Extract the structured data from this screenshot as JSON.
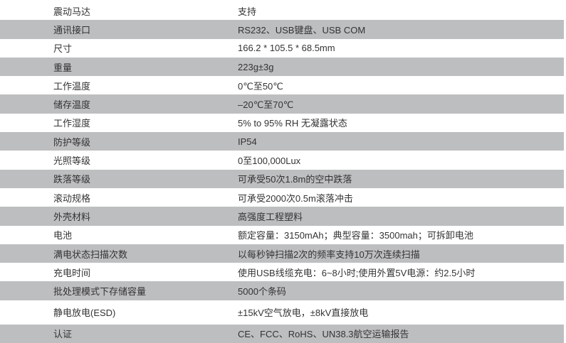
{
  "colors": {
    "stripe": "#bdbec0",
    "text": "#333333"
  },
  "rows": [
    {
      "label": "震动马达",
      "value": "支持"
    },
    {
      "label": "通讯接口",
      "value": "RS232、USB键盘、USB COM"
    },
    {
      "label": "尺寸",
      "value": "166.2 * 105.5 * 68.5mm"
    },
    {
      "label": "重量",
      "value": "223g±3g"
    },
    {
      "label": "工作温度",
      "value": "0℃至50℃"
    },
    {
      "label": "储存温度",
      "value": "–20℃至70℃"
    },
    {
      "label": "工作湿度",
      "value": "5% to 95% RH 无凝露状态"
    },
    {
      "label": "防护等级",
      "value": "IP54"
    },
    {
      "label": "光照等级",
      "value": "0至100,000Lux"
    },
    {
      "label": "跌落等级",
      "value": "可承受50次1.8m的空中跌落"
    },
    {
      "label": "滚动规格",
      "value": "可承受2000次0.5m滚落冲击"
    },
    {
      "label": "外壳材料",
      "value": "高强度工程塑料"
    },
    {
      "label": "电池",
      "value": "额定容量：3150mAh；典型容量：3500mah；可拆卸电池"
    },
    {
      "label": "满电状态扫描次数",
      "value": "以每秒钟扫描2次的频率支持10万次连续扫描"
    },
    {
      "label": "充电时间",
      "value": "使用USB线缆充电：6~8小时;使用外置5V电源：约2.5小时"
    },
    {
      "label": "批处理模式下存储容量",
      "value": "5000个条码"
    },
    {
      "label": "静电放电(ESD)",
      "value": "±15kV空气放电，±8kV直接放电"
    },
    {
      "label": "认证",
      "value": "CE、FCC、RoHS、UN38.3航空运输报告"
    }
  ]
}
